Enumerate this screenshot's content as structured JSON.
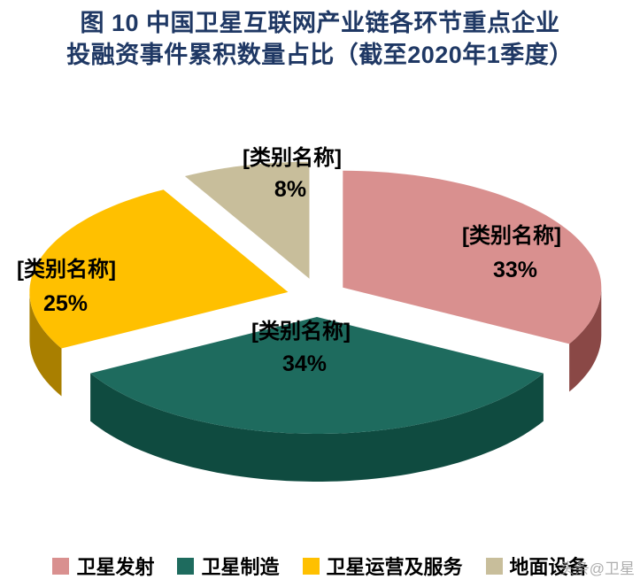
{
  "header": {
    "title_line1": "图 10  中国卫星互联网产业链各环节重点企业",
    "title_line2": "投融资事件累积数量占比（截至2020年1季度）"
  },
  "watermark": "头条@卫星",
  "chart_data": {
    "type": "pie",
    "title": "图 10 中国卫星互联网产业链各环节重点企业投融资事件累积数量占比（截至2020年1季度）",
    "categories": [
      "卫星发射",
      "卫星制造",
      "卫星运营及服务",
      "地面设备"
    ],
    "values": [
      33,
      34,
      25,
      8
    ],
    "unit": "%",
    "data_labels": [
      "[类别名称]",
      "[类别名称]",
      "[类别名称]",
      "[类别名称]"
    ],
    "pct_labels": [
      "33%",
      "34%",
      "25%",
      "8%"
    ],
    "colors": [
      "#D9908F",
      "#1E6B5E",
      "#FFC000",
      "#C8BE9B"
    ],
    "side_colors": [
      "#8A4846",
      "#0F4B40",
      "#A97F00",
      "#8E8565"
    ],
    "start_angle": "12-oclock",
    "direction": "clockwise",
    "effect": "3d-exploded",
    "legend_position": "bottom",
    "grid": false
  },
  "legend": {
    "items": [
      {
        "label": "卫星发射",
        "color": "#D9908F"
      },
      {
        "label": "卫星制造",
        "color": "#1E6B5E"
      },
      {
        "label": "卫星运营及服务",
        "color": "#FFC000"
      },
      {
        "label": "地面设备",
        "color": "#C8BE9B"
      }
    ]
  }
}
